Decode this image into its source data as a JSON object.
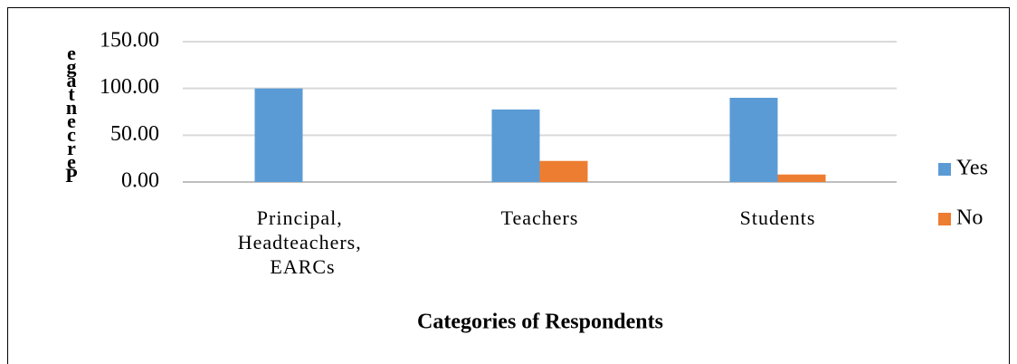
{
  "chart_data": {
    "type": "bar",
    "y_label": "Percentage",
    "x_label": "Categories of Respondents",
    "categories": [
      "Principal, Headteachers, EARCs",
      "Teachers",
      "Students"
    ],
    "series": [
      {
        "name": "Yes",
        "color": "#5b9bd5",
        "values": [
          100,
          77.5,
          90
        ]
      },
      {
        "name": "No",
        "color": "#ed7d31",
        "values": [
          0,
          22.5,
          8
        ]
      }
    ],
    "ylim": [
      0,
      150
    ],
    "yticks": [
      {
        "value": 0,
        "label": "0.00"
      },
      {
        "value": 50,
        "label": "50.00"
      },
      {
        "value": 100,
        "label": "100.00"
      },
      {
        "value": 150,
        "label": "150.00"
      }
    ],
    "grid": true,
    "legend": "right"
  }
}
